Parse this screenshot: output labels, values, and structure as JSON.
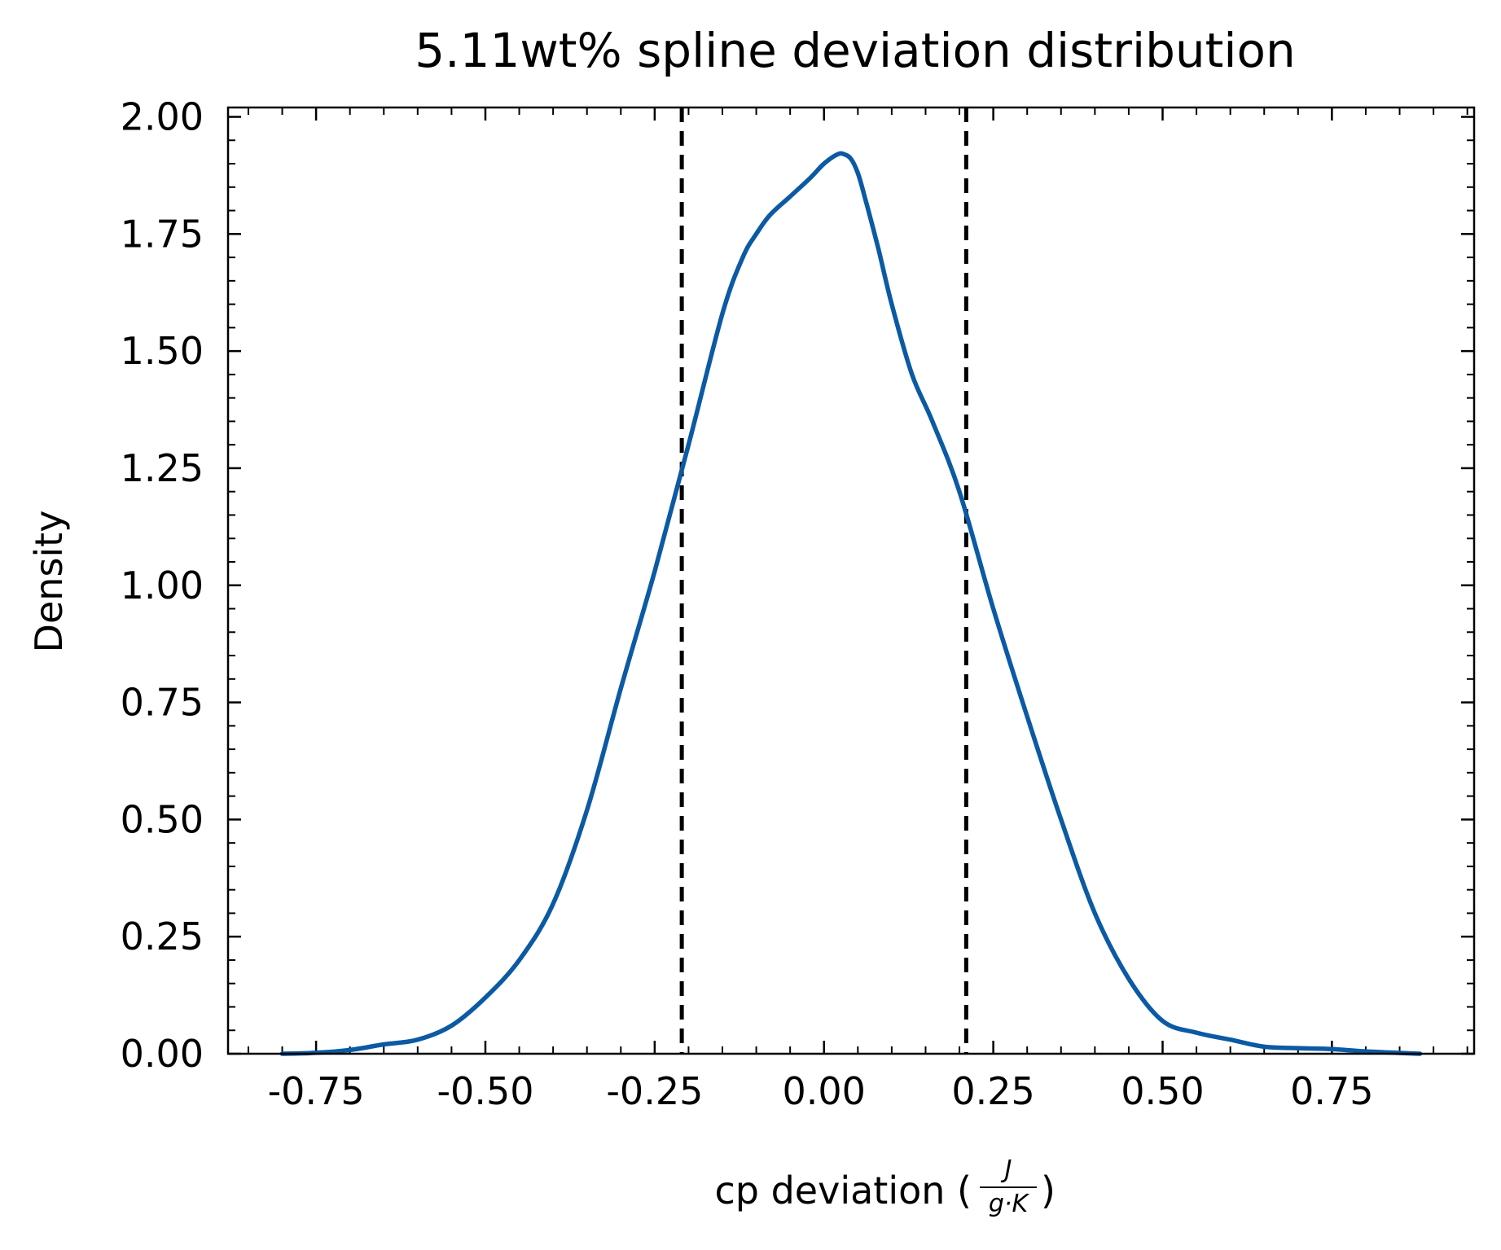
{
  "chart_data": {
    "type": "line",
    "title": "5.11wt% spline deviation distribution",
    "xlabel": {
      "prefix": "cp deviation (",
      "unit_numerator": "J",
      "unit_denominator": "g·K",
      "suffix": ")"
    },
    "ylabel": "Density",
    "xlim": [
      -0.88,
      0.96
    ],
    "ylim": [
      0,
      2.02
    ],
    "x_ticks": [
      -0.75,
      -0.5,
      -0.25,
      0.0,
      0.25,
      0.5,
      0.75
    ],
    "x_tick_labels": [
      "-0.75",
      "-0.50",
      "-0.25",
      "0.00",
      "0.25",
      "0.50",
      "0.75"
    ],
    "y_ticks": [
      0.0,
      0.25,
      0.5,
      0.75,
      1.0,
      1.25,
      1.5,
      1.75,
      2.0
    ],
    "y_tick_labels": [
      "0.00",
      "0.25",
      "0.50",
      "0.75",
      "1.00",
      "1.25",
      "1.50",
      "1.75",
      "2.00"
    ],
    "x_minor_step": 0.05,
    "y_minor_step": 0.05,
    "grid": false,
    "series": [
      {
        "color": "#0b5aa3",
        "x": [
          -0.8,
          -0.75,
          -0.7,
          -0.65,
          -0.6,
          -0.55,
          -0.5,
          -0.45,
          -0.4,
          -0.35,
          -0.3,
          -0.25,
          -0.2,
          -0.15,
          -0.12,
          -0.1,
          -0.08,
          -0.05,
          -0.02,
          0.0,
          0.02,
          0.03,
          0.04,
          0.05,
          0.06,
          0.08,
          0.1,
          0.13,
          0.16,
          0.2,
          0.25,
          0.3,
          0.35,
          0.4,
          0.45,
          0.5,
          0.55,
          0.6,
          0.65,
          0.7,
          0.75,
          0.8,
          0.88
        ],
        "y": [
          0.0,
          0.002,
          0.008,
          0.02,
          0.03,
          0.06,
          0.12,
          0.2,
          0.32,
          0.52,
          0.78,
          1.03,
          1.3,
          1.58,
          1.7,
          1.75,
          1.79,
          1.83,
          1.87,
          1.9,
          1.92,
          1.92,
          1.91,
          1.88,
          1.83,
          1.72,
          1.6,
          1.45,
          1.35,
          1.2,
          0.95,
          0.72,
          0.5,
          0.3,
          0.16,
          0.07,
          0.045,
          0.03,
          0.015,
          0.012,
          0.01,
          0.005,
          0.0
        ]
      }
    ],
    "reference_lines": [
      {
        "orientation": "vertical",
        "x": -0.21,
        "style": "dashed",
        "color": "#000000"
      },
      {
        "orientation": "vertical",
        "x": 0.21,
        "style": "dashed",
        "color": "#000000"
      }
    ]
  }
}
